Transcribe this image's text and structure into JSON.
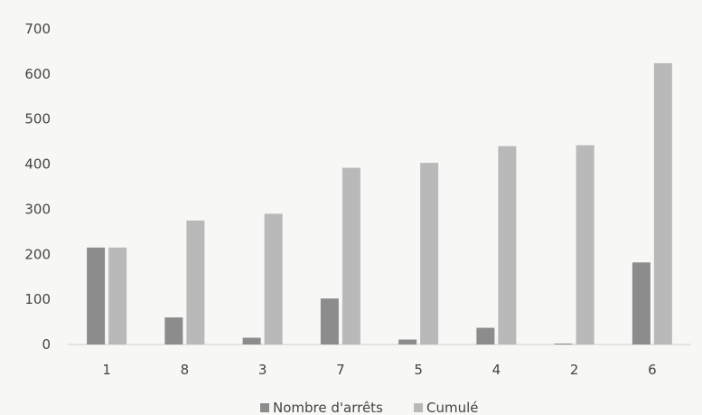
{
  "chart_data": {
    "type": "bar",
    "title": "",
    "xlabel": "",
    "ylabel": "",
    "categories": [
      "1",
      "8",
      "3",
      "7",
      "5",
      "4",
      "2",
      "6"
    ],
    "series": [
      {
        "name": "Nombre d'arrêts",
        "values": [
          215,
          60,
          15,
          102,
          11,
          37,
          2,
          182
        ],
        "color": "#8c8c8c"
      },
      {
        "name": "Cumulé",
        "values": [
          215,
          275,
          290,
          392,
          403,
          440,
          442,
          624
        ],
        "color": "#b9b9b9"
      }
    ],
    "ylim": [
      0,
      700
    ],
    "yticks": [
      "0",
      "100",
      "200",
      "300",
      "400",
      "500",
      "600",
      "700"
    ],
    "grid": false,
    "legend_position": "bottom"
  }
}
